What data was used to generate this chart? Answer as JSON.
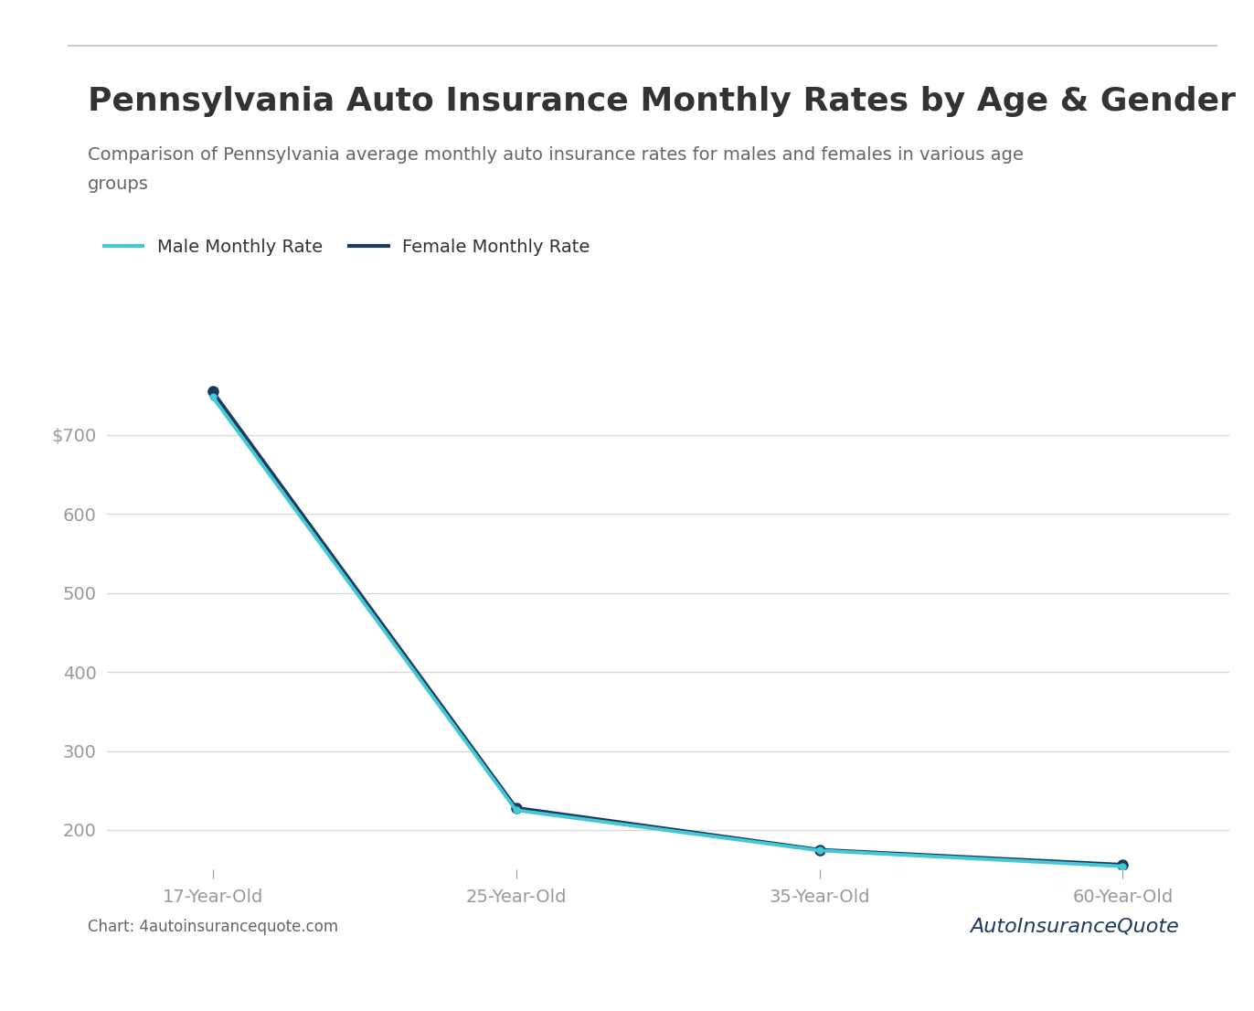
{
  "title": "Pennsylvania Auto Insurance Monthly Rates by Age & Gender",
  "subtitle_line1": "Comparison of Pennsylvania average monthly auto insurance rates for males and females in various age",
  "subtitle_line2": "groups",
  "categories": [
    "17-Year-Old",
    "25-Year-Old",
    "35-Year-Old",
    "60-Year-Old"
  ],
  "male_values": [
    748,
    225,
    174,
    154
  ],
  "female_values": [
    755,
    228,
    175,
    156
  ],
  "male_color": "#44C8D5",
  "female_color": "#1B3A5C",
  "background_color": "#ffffff",
  "grid_color": "#d8d8d8",
  "title_color": "#333333",
  "subtitle_color": "#666666",
  "axis_label_color": "#999999",
  "legend_male": "Male Monthly Rate",
  "legend_female": "Female Monthly Rate",
  "ylim_min": 150,
  "ylim_max": 790,
  "yticks": [
    200,
    300,
    400,
    500,
    600,
    700
  ],
  "ytick_labels": [
    "200",
    "300",
    "400",
    "500",
    "600",
    "$700"
  ],
  "source_text": "Chart: 4autoinsurancequote.com",
  "title_fontsize": 26,
  "subtitle_fontsize": 14,
  "tick_fontsize": 14,
  "legend_fontsize": 14,
  "source_fontsize": 12,
  "separator_color": "#cccccc"
}
